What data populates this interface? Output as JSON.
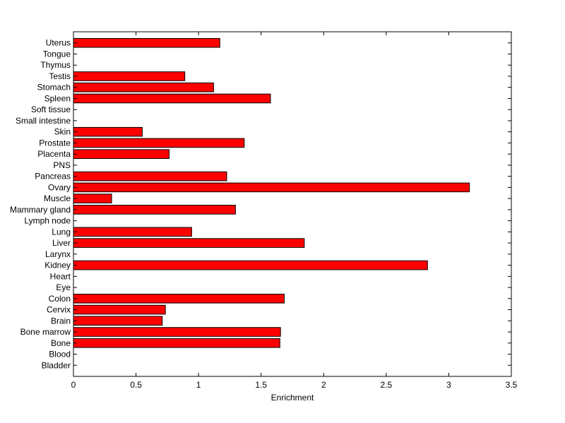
{
  "chart_data": {
    "type": "bar",
    "orientation": "horizontal",
    "categories": [
      "Bladder",
      "Blood",
      "Bone",
      "Bone marrow",
      "Brain",
      "Cervix",
      "Colon",
      "Eye",
      "Heart",
      "Kidney",
      "Larynx",
      "Liver",
      "Lung",
      "Lymph node",
      "Mammary gland",
      "Muscle",
      "Ovary",
      "Pancreas",
      "PNS",
      "Placenta",
      "Prostate",
      "Skin",
      "Small intestine",
      "Soft tissue",
      "Spleen",
      "Stomach",
      "Testis",
      "Thymus",
      "Tongue",
      "Uterus"
    ],
    "values": [
      0,
      0,
      1.65,
      1.655,
      0.71,
      0.735,
      1.685,
      0,
      0,
      2.83,
      0,
      1.845,
      0.945,
      0,
      1.295,
      0.305,
      3.165,
      1.225,
      0,
      0.765,
      1.365,
      0.55,
      0,
      0,
      1.575,
      1.12,
      0.89,
      0,
      0,
      1.17
    ],
    "xlabel": "Enrichment",
    "ylabel": "",
    "title": "",
    "xlim": [
      0,
      3.5
    ],
    "xticks": [
      "0",
      "0.5",
      "1",
      "1.5",
      "2",
      "2.5",
      "3",
      "3.5"
    ],
    "bar_color": "#ff0000",
    "grid": false
  }
}
